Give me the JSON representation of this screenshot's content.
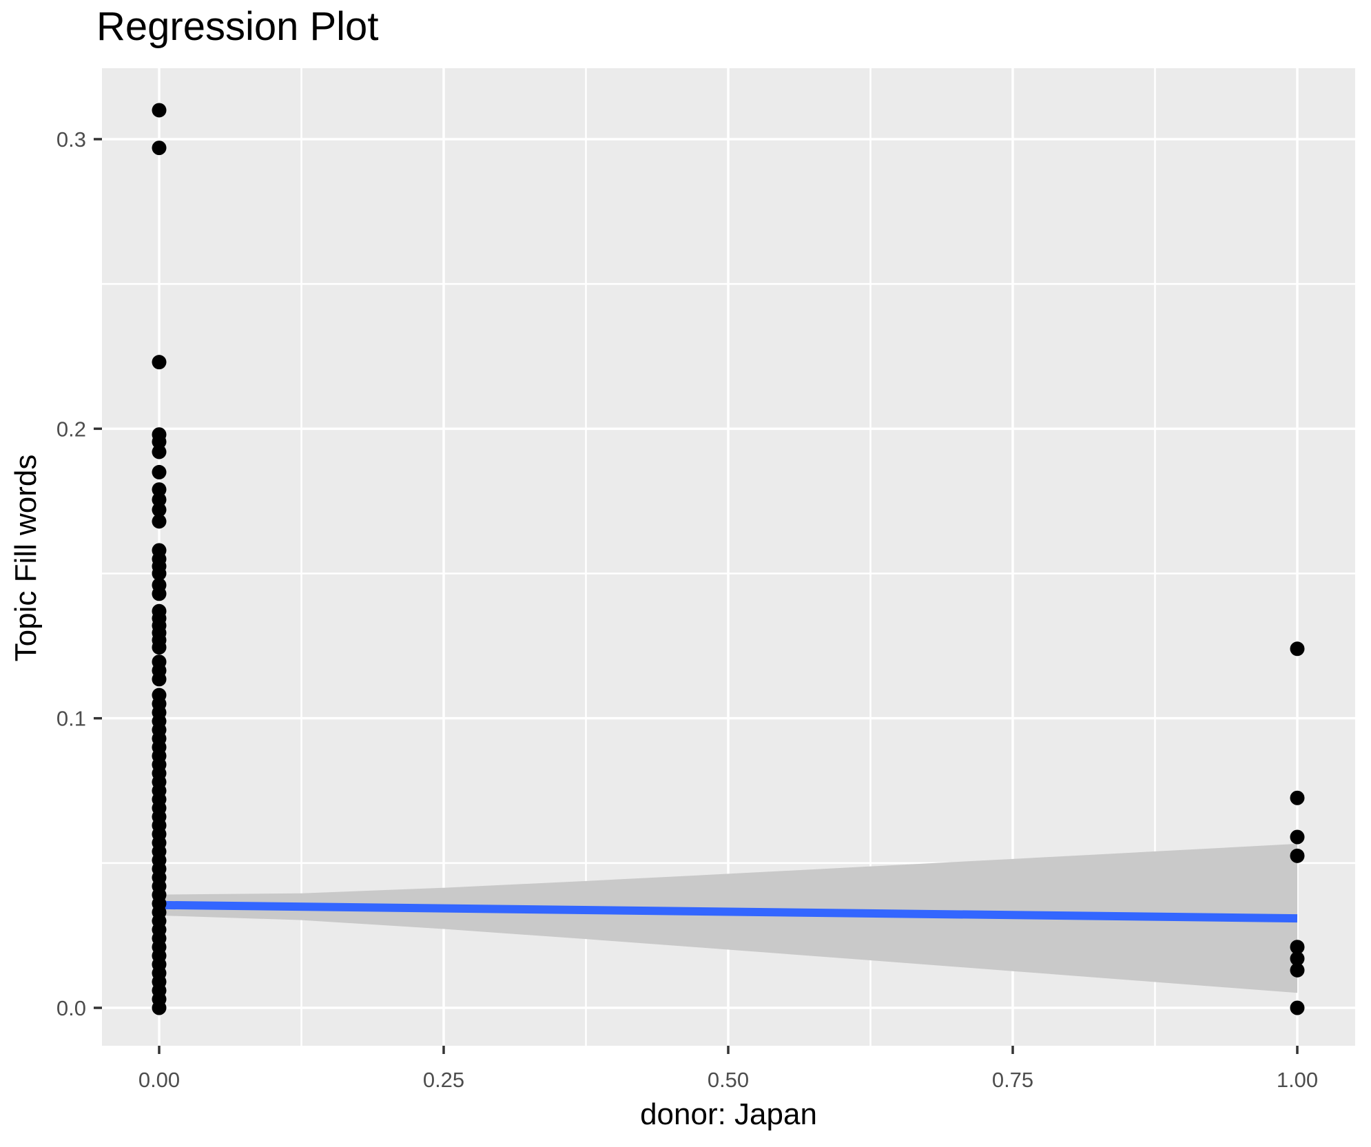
{
  "title": "Regression Plot",
  "chart_data": {
    "type": "scatter",
    "title": "Regression Plot",
    "xlabel": "donor: Japan",
    "ylabel": "Topic Fill words",
    "legend": "none",
    "grid": "major and minor white gridlines on gray panel",
    "panel_color": "#EBEBEB",
    "grid_color": "#FFFFFF",
    "point_color": "#000000",
    "line_color": "#3366FF",
    "band_color": "#C9C9C9",
    "tick_color": "#333333",
    "tick_label_color": "#4D4D4D",
    "xlim": [
      -0.0508,
      1.0508
    ],
    "ylim": [
      -0.0131,
      0.3245
    ],
    "x_ticks": {
      "values": [
        0,
        0.25,
        0.5,
        0.75,
        1.0
      ],
      "labels": [
        "0.00",
        "0.25",
        "0.50",
        "0.75",
        "1.00"
      ]
    },
    "y_ticks": {
      "values": [
        0,
        0.1,
        0.2,
        0.3
      ],
      "labels": [
        "0.0",
        "0.1",
        "0.2",
        "0.3"
      ]
    },
    "x_minor": [
      0.125,
      0.375,
      0.625,
      0.875
    ],
    "y_minor": [
      0.05,
      0.15,
      0.25
    ],
    "series": [
      {
        "name": "observations at donor=0",
        "x_value": 0,
        "y_values": [
          0.31,
          0.297,
          0.223,
          0.198,
          0.1955,
          0.192,
          0.185,
          0.179,
          0.1755,
          0.172,
          0.168,
          0.158,
          0.155,
          0.1525,
          0.15,
          0.146,
          0.143,
          0.137,
          0.1345,
          0.132,
          0.1295,
          0.127,
          0.1245,
          0.1195,
          0.1165,
          0.1135,
          0.108,
          0.105,
          0.102,
          0.099,
          0.096,
          0.093,
          0.09,
          0.087,
          0.084,
          0.081,
          0.078,
          0.075,
          0.072,
          0.069,
          0.066,
          0.063,
          0.06,
          0.057,
          0.054,
          0.051,
          0.048,
          0.045,
          0.042,
          0.039,
          0.036,
          0.033,
          0.03,
          0.027,
          0.024,
          0.021,
          0.018,
          0.015,
          0.012,
          0.009,
          0.006,
          0.003,
          0.0
        ]
      },
      {
        "name": "observations at donor=1",
        "x_value": 1,
        "y_values": [
          0.124,
          0.0725,
          0.059,
          0.0525,
          0.021,
          0.017,
          0.013,
          0.0
        ]
      }
    ],
    "regression_line": {
      "x": [
        0,
        1
      ],
      "y": [
        0.0355,
        0.0309
      ]
    },
    "confidence_band": {
      "x": [
        0,
        0.125,
        0.25,
        0.375,
        0.5,
        0.625,
        0.75,
        0.875,
        1.0
      ],
      "upper": [
        0.0391,
        0.03956,
        0.04147,
        0.04381,
        0.04629,
        0.04885,
        0.05143,
        0.05403,
        0.05664
      ],
      "lower": [
        0.0319,
        0.0303,
        0.02723,
        0.02375,
        0.02011,
        0.01641,
        0.01267,
        0.00893,
        0.00516
      ]
    }
  }
}
